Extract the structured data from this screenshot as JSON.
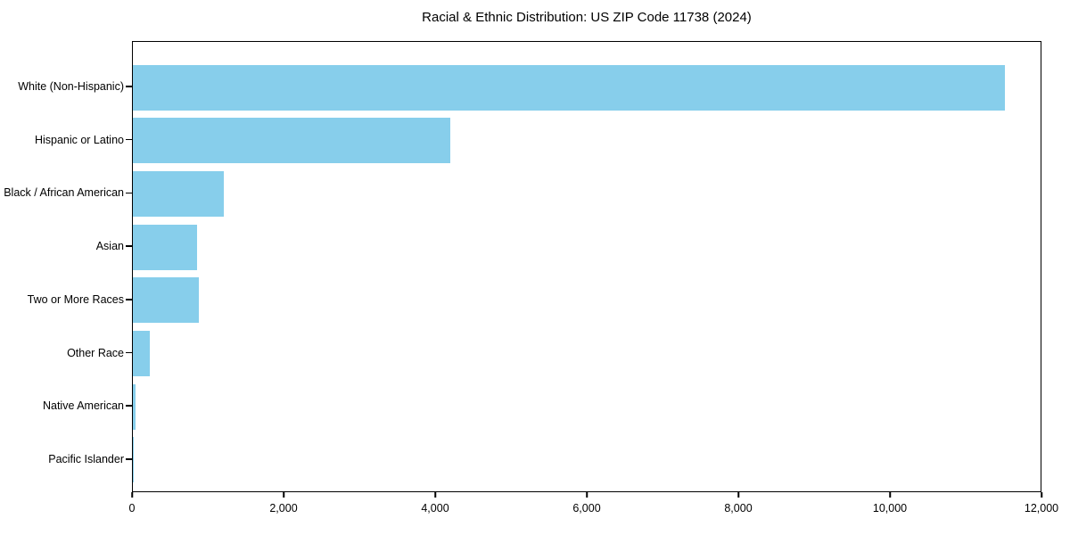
{
  "chart_data": {
    "type": "bar",
    "orientation": "horizontal",
    "title": "Racial & Ethnic Distribution: US ZIP Code 11738 (2024)",
    "categories": [
      "White (Non-Hispanic)",
      "Hispanic or Latino",
      "Black / African American",
      "Asian",
      "Two or More Races",
      "Other Race",
      "Native American",
      "Pacific Islander"
    ],
    "values": [
      11530,
      4200,
      1200,
      850,
      870,
      220,
      35,
      10
    ],
    "xlabel": "",
    "ylabel": "",
    "xlim": [
      0,
      12000
    ],
    "xticks": [
      0,
      2000,
      4000,
      6000,
      8000,
      10000,
      12000
    ],
    "xtick_labels": [
      "0",
      "2,000",
      "4,000",
      "6,000",
      "8,000",
      "10,000",
      "12,000"
    ],
    "bar_color": "#87CEEB",
    "axis_color": "#000000",
    "text_color": "#000000",
    "grid": false,
    "legend": false,
    "background": "#ffffff"
  }
}
